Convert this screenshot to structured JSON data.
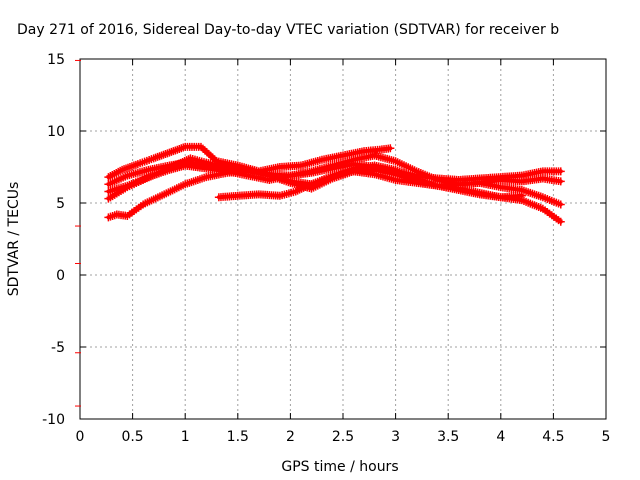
{
  "chart_data": {
    "type": "line",
    "title": "Day 271 of 2016, Sidereal Day-to-day VTEC variation (SDTVAR) for receiver b",
    "xlabel": "GPS time / hours",
    "ylabel": "SDTVAR / TECUs",
    "xlim": [
      0,
      5
    ],
    "ylim": [
      -10,
      15
    ],
    "x_ticks": [
      "0",
      "0.5",
      "1",
      "1.5",
      "2",
      "2.5",
      "3",
      "3.5",
      "4",
      "4.5",
      "5"
    ],
    "y_ticks": [
      "-10",
      "-5",
      "0",
      "5",
      "10",
      "15"
    ],
    "grid": true,
    "color": "#ff0000",
    "series": [
      {
        "x": [
          0.27,
          0.4,
          0.55,
          0.7,
          0.85,
          1.0,
          1.15,
          1.3,
          1.5,
          1.7,
          1.9,
          2.1,
          2.3,
          2.5,
          2.7,
          2.85,
          2.95
        ],
        "y": [
          6.8,
          7.3,
          7.7,
          8.1,
          8.5,
          8.9,
          8.9,
          7.9,
          7.6,
          7.2,
          7.5,
          7.6,
          8.0,
          8.3,
          8.6,
          8.7,
          8.8
        ]
      },
      {
        "x": [
          0.27,
          0.45,
          0.65,
          0.85,
          1.0,
          1.2,
          1.4,
          1.6,
          1.8,
          2.0,
          2.2,
          2.4,
          2.6,
          2.8,
          3.0,
          3.2,
          3.4,
          3.6,
          3.8,
          4.0,
          4.2,
          4.4,
          4.57
        ],
        "y": [
          6.3,
          6.9,
          7.3,
          7.6,
          7.8,
          7.6,
          7.4,
          7.3,
          7.0,
          6.9,
          7.1,
          7.4,
          7.7,
          7.5,
          7.2,
          6.9,
          6.7,
          6.6,
          6.7,
          6.8,
          6.9,
          7.2,
          7.2
        ]
      },
      {
        "x": [
          0.27,
          0.45,
          0.65,
          0.85,
          1.0,
          1.2,
          1.4,
          1.6,
          1.8,
          2.0,
          2.2,
          2.4,
          2.6,
          2.8,
          3.0,
          3.2,
          3.4,
          3.6,
          3.8,
          4.0,
          4.2,
          4.4,
          4.57
        ],
        "y": [
          5.8,
          6.2,
          6.8,
          7.3,
          7.6,
          7.4,
          7.2,
          6.9,
          6.6,
          6.9,
          7.2,
          7.6,
          8.0,
          8.3,
          7.9,
          7.2,
          6.6,
          6.3,
          6.4,
          6.6,
          6.5,
          6.7,
          6.5
        ]
      },
      {
        "x": [
          0.27,
          0.45,
          0.6,
          0.75,
          0.9,
          1.05,
          1.2,
          1.4,
          1.6,
          1.8,
          2.0,
          2.2,
          2.4,
          2.6,
          2.8,
          3.0,
          3.2,
          3.4,
          3.6,
          3.8,
          4.0,
          4.2,
          4.4,
          4.57
        ],
        "y": [
          5.3,
          6.1,
          6.6,
          7.1,
          7.6,
          8.1,
          7.8,
          7.5,
          7.3,
          6.9,
          6.5,
          6.3,
          6.8,
          7.2,
          7.0,
          6.6,
          6.4,
          6.2,
          6.3,
          6.4,
          6.1,
          5.9,
          5.4,
          4.9
        ]
      },
      {
        "x": [
          0.27,
          0.35,
          0.45,
          0.6,
          0.8,
          1.0,
          1.2,
          1.4,
          1.6,
          1.8,
          2.0,
          2.2,
          2.4,
          2.6,
          2.8,
          3.0,
          3.2,
          3.4,
          3.6,
          3.8,
          4.0,
          4.2,
          4.4,
          4.57
        ],
        "y": [
          4.0,
          4.2,
          4.1,
          4.9,
          5.6,
          6.3,
          6.8,
          7.1,
          7.2,
          6.9,
          6.4,
          6.0,
          6.7,
          7.2,
          7.3,
          7.0,
          6.5,
          6.2,
          6.0,
          5.7,
          5.4,
          5.2,
          4.6,
          3.7
        ]
      },
      {
        "x": [
          1.32,
          1.5,
          1.7,
          1.9,
          2.05,
          2.2,
          2.4,
          2.6,
          2.8,
          3.0,
          3.2,
          3.4,
          3.6,
          3.8,
          4.0,
          4.2
        ],
        "y": [
          5.4,
          5.5,
          5.6,
          5.5,
          5.8,
          6.3,
          6.9,
          7.4,
          7.6,
          7.3,
          6.7,
          6.2,
          5.9,
          5.6,
          5.4,
          5.5
        ]
      }
    ]
  }
}
